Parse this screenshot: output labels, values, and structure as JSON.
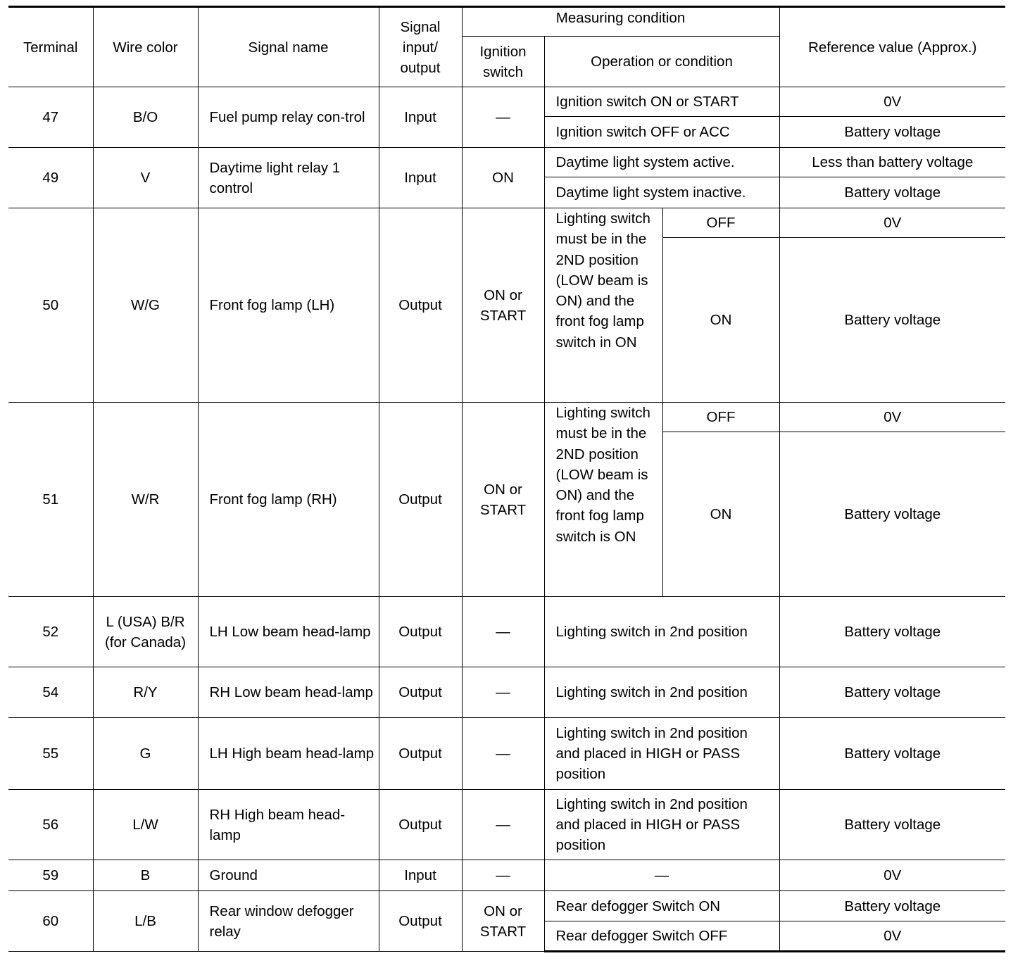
{
  "header": {
    "terminal": "Terminal",
    "wire_color": "Wire color",
    "signal_name": "Signal name",
    "signal_io": "Signal input/ output",
    "measuring_condition": "Measuring condition",
    "ignition_switch": "Ignition switch",
    "operation": "Operation or condition",
    "reference": "Reference value (Approx.)"
  },
  "rows": [
    {
      "terminal": "47",
      "wire_color": "B/O",
      "signal_name": "Fuel pump relay con-trol",
      "io": "Input",
      "ignition": "—",
      "conditions": [
        {
          "operation": "Ignition switch ON or START",
          "reference": "0V"
        },
        {
          "operation": "Ignition switch OFF or ACC",
          "reference": "Battery voltage"
        }
      ]
    },
    {
      "terminal": "49",
      "wire_color": "V",
      "signal_name": "Daytime light relay 1 control",
      "io": "Input",
      "ignition": "ON",
      "conditions": [
        {
          "operation": "Daytime light system active.",
          "reference": "Less than battery voltage"
        },
        {
          "operation": "Daytime light system inactive.",
          "reference": "Battery voltage"
        }
      ]
    },
    {
      "terminal": "50",
      "wire_color": "W/G",
      "signal_name": "Front fog lamp (LH)",
      "io": "Output",
      "ignition": "ON or START",
      "operation": "Lighting switch must be in the 2ND position (LOW beam is ON) and the front fog lamp switch in ON",
      "states": [
        {
          "state": "OFF",
          "reference": "0V"
        },
        {
          "state": "ON",
          "reference": "Battery voltage"
        }
      ]
    },
    {
      "terminal": "51",
      "wire_color": "W/R",
      "signal_name": "Front fog lamp (RH)",
      "io": "Output",
      "ignition": "ON or START",
      "operation": "Lighting switch must be in the 2ND position (LOW beam is ON) and the front fog lamp switch is ON",
      "states": [
        {
          "state": "OFF",
          "reference": "0V"
        },
        {
          "state": "ON",
          "reference": "Battery voltage"
        }
      ]
    },
    {
      "terminal": "52",
      "wire_color": "L (USA) B/R (for Canada)",
      "signal_name": "LH Low beam head-lamp",
      "io": "Output",
      "ignition": "—",
      "conditions": [
        {
          "operation": "Lighting switch in 2nd position",
          "reference": "Battery voltage"
        }
      ]
    },
    {
      "terminal": "54",
      "wire_color": "R/Y",
      "signal_name": "RH Low beam head-lamp",
      "io": "Output",
      "ignition": "—",
      "conditions": [
        {
          "operation": "Lighting switch in 2nd position",
          "reference": "Battery voltage"
        }
      ]
    },
    {
      "terminal": "55",
      "wire_color": "G",
      "signal_name": "LH High beam head-lamp",
      "io": "Output",
      "ignition": "—",
      "conditions": [
        {
          "operation": "Lighting switch in 2nd position and placed in HIGH or PASS position",
          "reference": "Battery voltage"
        }
      ]
    },
    {
      "terminal": "56",
      "wire_color": "L/W",
      "signal_name": "RH High beam head-lamp",
      "io": "Output",
      "ignition": "—",
      "conditions": [
        {
          "operation": "Lighting switch in 2nd position and placed in HIGH or PASS position",
          "reference": "Battery voltage"
        }
      ]
    },
    {
      "terminal": "59",
      "wire_color": "B",
      "signal_name": "Ground",
      "io": "Input",
      "ignition": "—",
      "conditions": [
        {
          "operation": "—",
          "reference": "0V",
          "center": true
        }
      ]
    },
    {
      "terminal": "60",
      "wire_color": "L/B",
      "signal_name": "Rear window defogger relay",
      "io": "Output",
      "ignition": "ON or START",
      "conditions": [
        {
          "operation": "Rear defogger Switch ON",
          "reference": "Battery voltage"
        },
        {
          "operation": "Rear defogger Switch OFF",
          "reference": "0V"
        }
      ]
    }
  ]
}
